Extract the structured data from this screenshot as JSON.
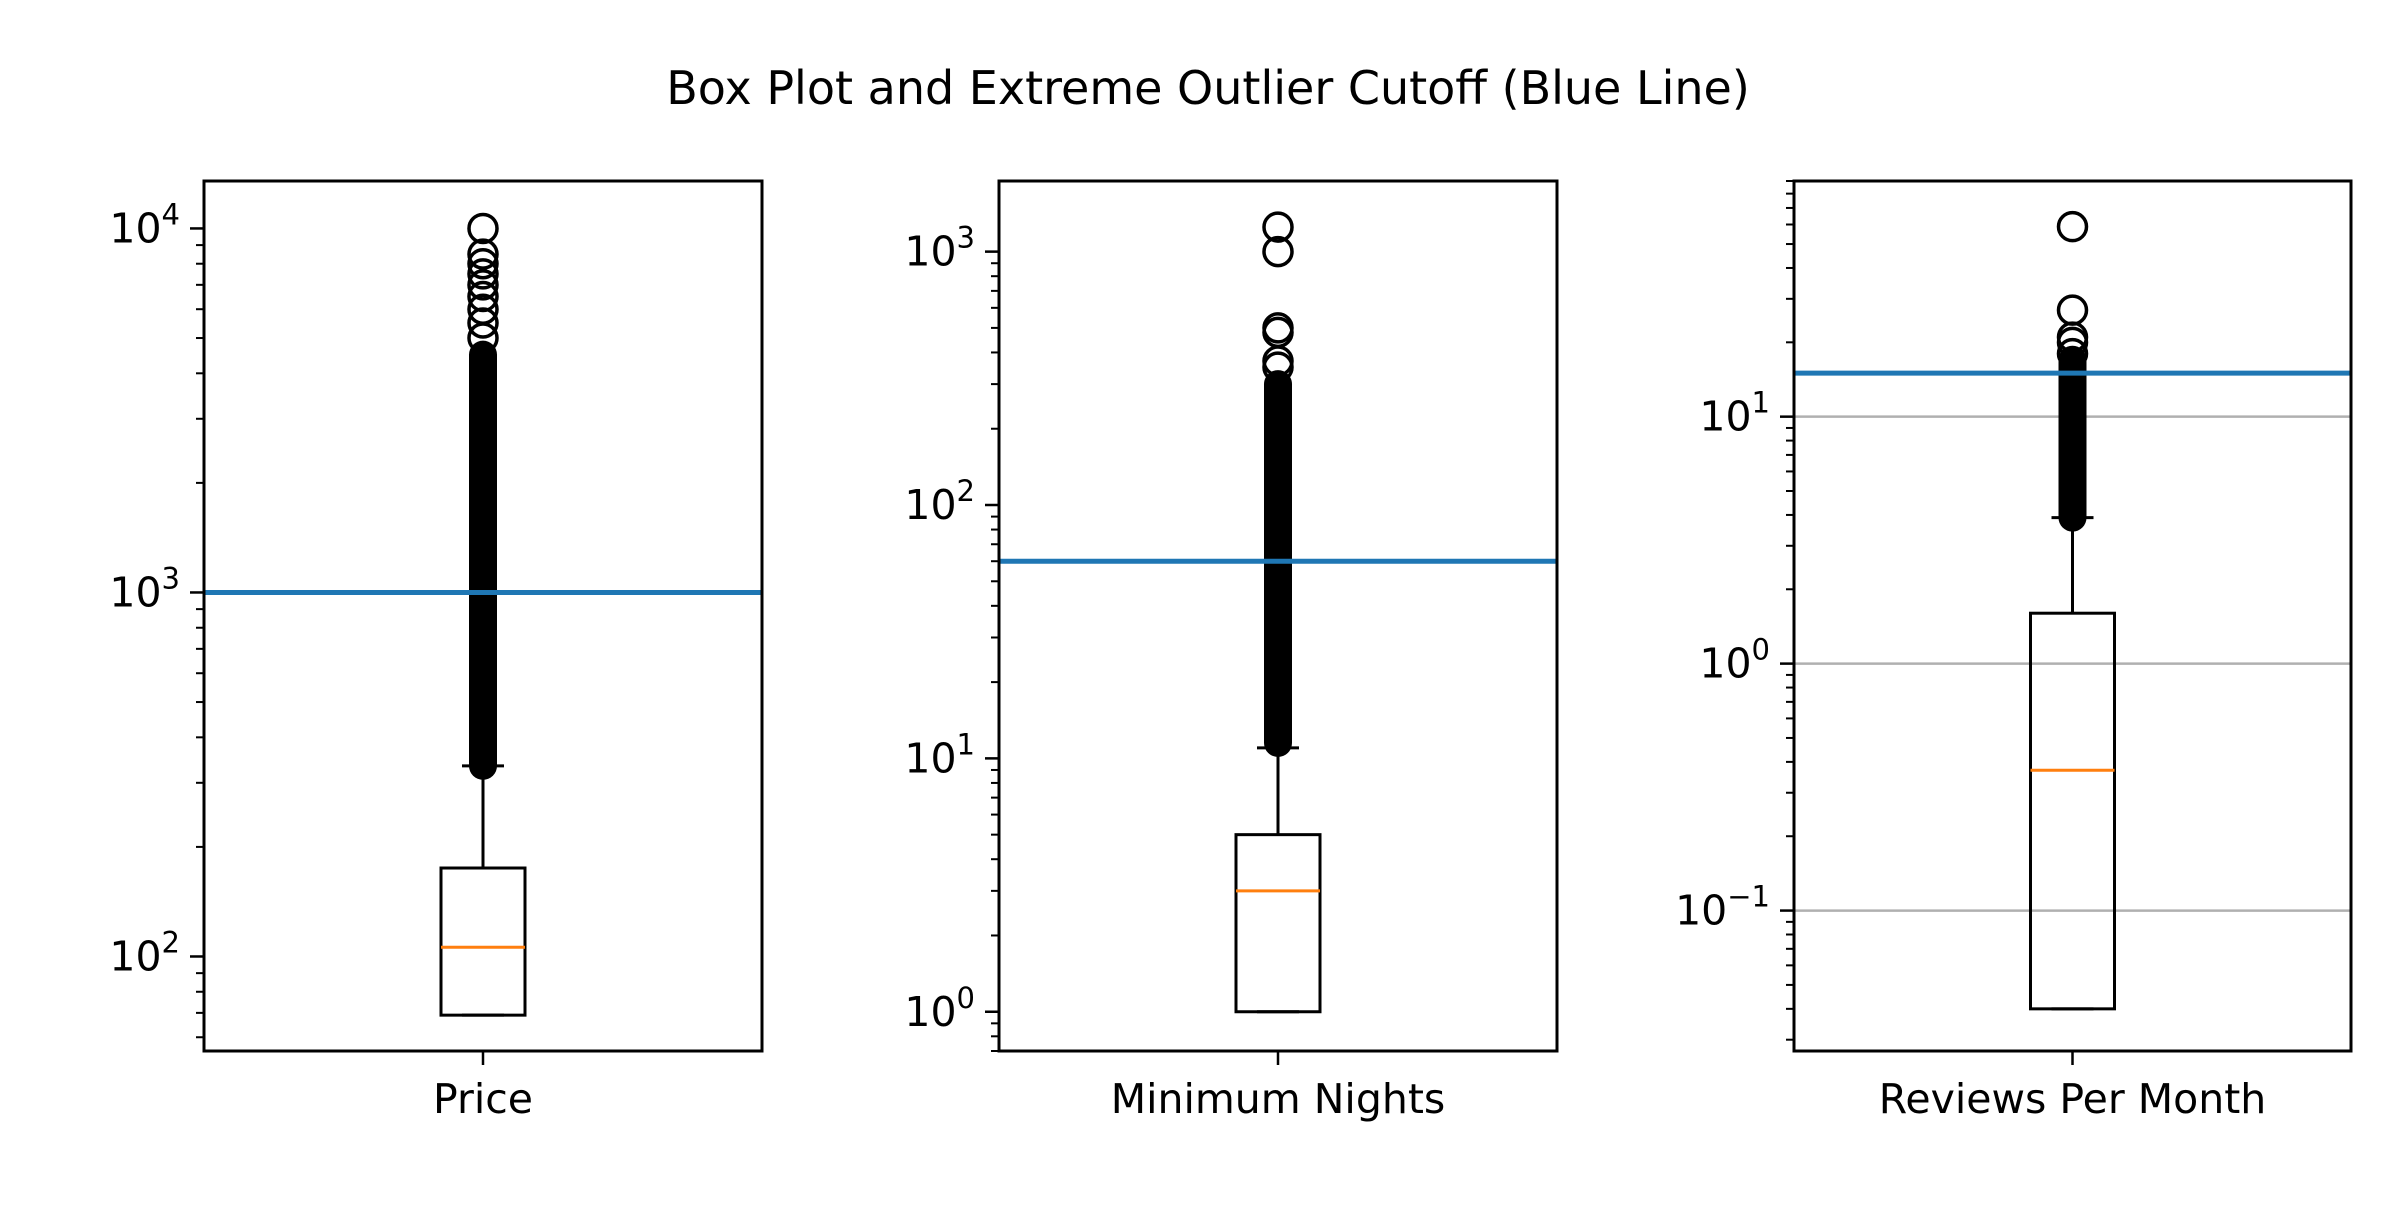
{
  "chart_data": {
    "type": "box",
    "title": "Box Plot and Extreme Outlier Cutoff (Blue Line)",
    "y_scale": "log",
    "colors": {
      "cutoff_line": "#1f77b4",
      "median": "#ff7f0e",
      "box": "#000000",
      "grid": "#b0b0b0"
    },
    "panels": [
      {
        "name": "Price",
        "xlabel": "Price",
        "ylim": [
          55,
          13500
        ],
        "grid": false,
        "yticks": [
          {
            "value": 100,
            "base": "10",
            "exp": "2"
          },
          {
            "value": 1000,
            "base": "10",
            "exp": "3"
          },
          {
            "value": 10000,
            "base": "10",
            "exp": "4"
          }
        ],
        "box": {
          "whisker_low": 69,
          "q1": 69,
          "median": 106,
          "q3": 175,
          "whisker_high": 334
        },
        "outlier_range": [
          334,
          4500
        ],
        "outliers": [
          5000,
          5500,
          6000,
          6500,
          7000,
          7500,
          8000,
          8500,
          10000
        ],
        "cutoff": 1000
      },
      {
        "name": "Minimum Nights",
        "xlabel": "Minimum Nights",
        "ylim": [
          0.7,
          1900
        ],
        "grid": false,
        "yticks": [
          {
            "value": 1,
            "base": "10",
            "exp": "0"
          },
          {
            "value": 10,
            "base": "10",
            "exp": "1"
          },
          {
            "value": 100,
            "base": "10",
            "exp": "2"
          },
          {
            "value": 1000,
            "base": "10",
            "exp": "3"
          }
        ],
        "box": {
          "whisker_low": 1,
          "q1": 1,
          "median": 3,
          "q3": 5,
          "whisker_high": 11
        },
        "outlier_range": [
          11.5,
          300
        ],
        "outliers": [
          350,
          370,
          480,
          500,
          1000,
          1250
        ],
        "cutoff": 60
      },
      {
        "name": "Reviews Per Month",
        "xlabel": "Reviews Per Month",
        "ylim": [
          0.027,
          90
        ],
        "grid": true,
        "yticks": [
          {
            "value": 0.1,
            "base": "10",
            "exp": "−1"
          },
          {
            "value": 1,
            "base": "10",
            "exp": "0"
          },
          {
            "value": 10,
            "base": "10",
            "exp": "1"
          }
        ],
        "box": {
          "whisker_low": 0.04,
          "q1": 0.04,
          "median": 0.37,
          "q3": 1.6,
          "whisker_high": 3.9
        },
        "outlier_range": [
          3.9,
          17
        ],
        "outliers": [
          18,
          20,
          21,
          27,
          58.8
        ],
        "cutoff": 15
      }
    ]
  }
}
